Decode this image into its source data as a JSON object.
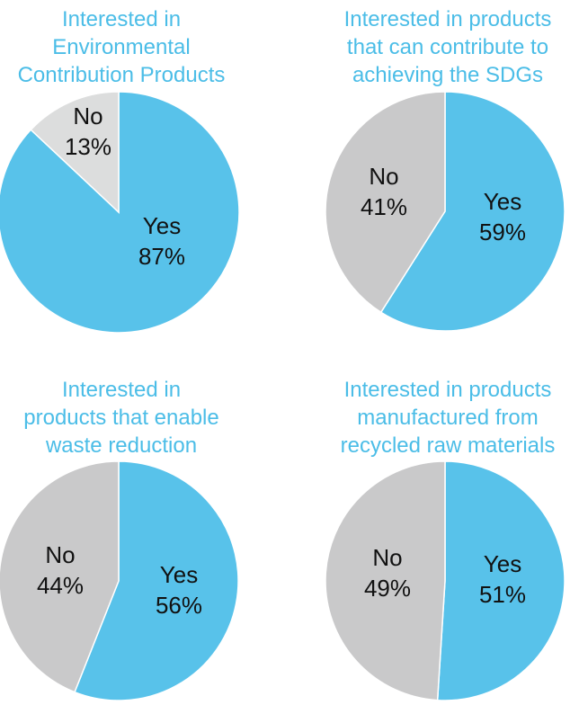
{
  "chart_data": [
    {
      "type": "pie",
      "title": "Interested in\nEnvironmental\nContribution Products",
      "slices": [
        {
          "label": "Yes",
          "value": 87,
          "display": "87%",
          "color": "#58c2ea"
        },
        {
          "label": "No",
          "value": 13,
          "display": "13%",
          "color": "#dcdddd"
        }
      ]
    },
    {
      "type": "pie",
      "title": "Interested in products\nthat can contribute to\nachieving the SDGs",
      "slices": [
        {
          "label": "Yes",
          "value": 59,
          "display": "59%",
          "color": "#58c2ea"
        },
        {
          "label": "No",
          "value": 41,
          "display": "41%",
          "color": "#c9c9ca"
        }
      ]
    },
    {
      "type": "pie",
      "title": "Interested in\nproducts that enable\nwaste reduction",
      "slices": [
        {
          "label": "Yes",
          "value": 56,
          "display": "56%",
          "color": "#58c2ea"
        },
        {
          "label": "No",
          "value": 44,
          "display": "44%",
          "color": "#c9c9ca"
        }
      ]
    },
    {
      "type": "pie",
      "title": "Interested in products\nmanufactured from\nrecycled raw materials",
      "slices": [
        {
          "label": "Yes",
          "value": 51,
          "display": "51%",
          "color": "#58c2ea"
        },
        {
          "label": "No",
          "value": 49,
          "display": "49%",
          "color": "#c9c9ca"
        }
      ]
    }
  ]
}
